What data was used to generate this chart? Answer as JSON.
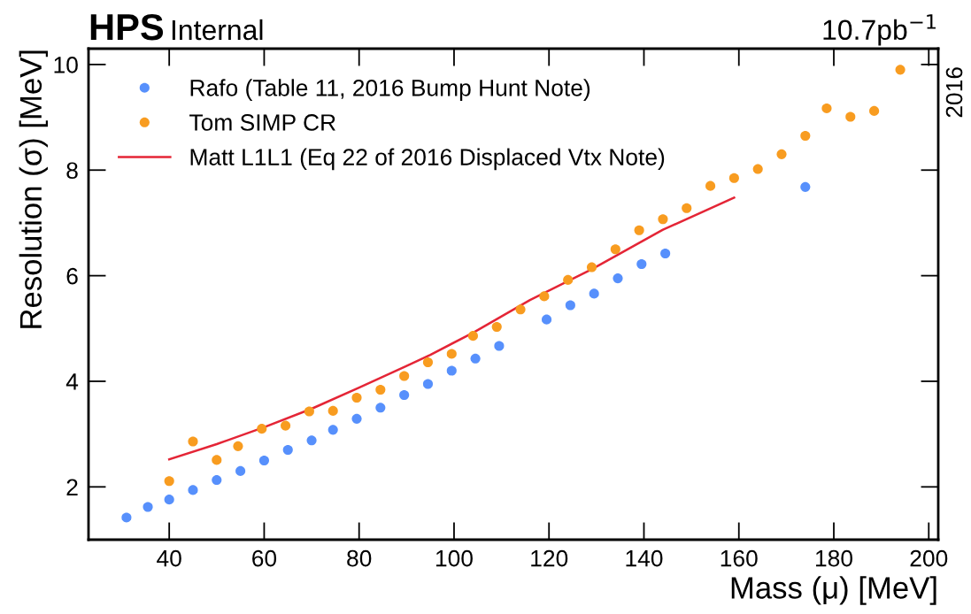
{
  "chart_data": {
    "type": "scatter",
    "title": "HPS",
    "subtitle": "Internal",
    "xlabel": "Mass (μ) [MeV]",
    "ylabel": "Resolution (σ) [MeV]",
    "annotations": [
      "10.7pb$^{−1}$",
      "2016"
    ],
    "xlim": [
      23,
      202
    ],
    "ylim": [
      1,
      10.3
    ],
    "xticks": [
      40,
      60,
      80,
      100,
      120,
      140,
      160,
      180,
      200
    ],
    "yticks": [
      2,
      4,
      6,
      8,
      10
    ],
    "grid": false,
    "legend": "top left",
    "marker": "circle",
    "series": [
      {
        "name": "Rafo (Table 11, 2016 Bump Hunt Note)",
        "color": "#5790fc",
        "x": [
          31,
          35.5,
          40,
          45,
          50,
          55,
          60,
          65,
          70,
          74.5,
          79.5,
          84.5,
          89.5,
          94.5,
          99.5,
          104.5,
          109.5,
          119.5,
          124.5,
          129.5,
          134.5,
          139.5,
          144.5,
          174
        ],
        "values": [
          1.42,
          1.62,
          1.76,
          1.94,
          2.13,
          2.3,
          2.5,
          2.7,
          2.88,
          3.08,
          3.29,
          3.5,
          3.74,
          3.95,
          4.2,
          4.43,
          4.67,
          5.17,
          5.44,
          5.66,
          5.95,
          6.22,
          6.42,
          7.68
        ]
      },
      {
        "name": "Tom SIMP CR",
        "color": "#f89c20",
        "x": [
          40,
          45,
          50,
          54.5,
          59.5,
          64.5,
          69.5,
          74.5,
          79.5,
          84.5,
          89.5,
          94.5,
          99.5,
          104,
          109,
          114,
          119,
          124,
          129,
          134,
          139,
          144,
          149,
          154,
          159,
          164,
          169,
          174,
          178.5,
          183.5,
          188.5,
          194
        ],
        "values": [
          2.11,
          2.86,
          2.51,
          2.77,
          3.1,
          3.16,
          3.43,
          3.44,
          3.69,
          3.84,
          4.1,
          4.36,
          4.52,
          4.86,
          5.03,
          5.36,
          5.61,
          5.92,
          6.16,
          6.5,
          6.86,
          7.07,
          7.28,
          7.7,
          7.85,
          8.02,
          8.3,
          8.65,
          9.17,
          9.01,
          9.12,
          9.9
        ]
      },
      {
        "name": "Matt L1L1 (Eq 22 of 2016 Displaced Vtx Note)",
        "color": "#e42536",
        "type": "line",
        "marker": "none",
        "line_style": "solid",
        "x": [
          40,
          50,
          60,
          70,
          80,
          90,
          95,
          104,
          116,
          129,
          144,
          159
        ],
        "values": [
          2.52,
          2.81,
          3.13,
          3.48,
          3.88,
          4.29,
          4.5,
          4.92,
          5.54,
          6.12,
          6.87,
          7.48
        ]
      }
    ]
  }
}
